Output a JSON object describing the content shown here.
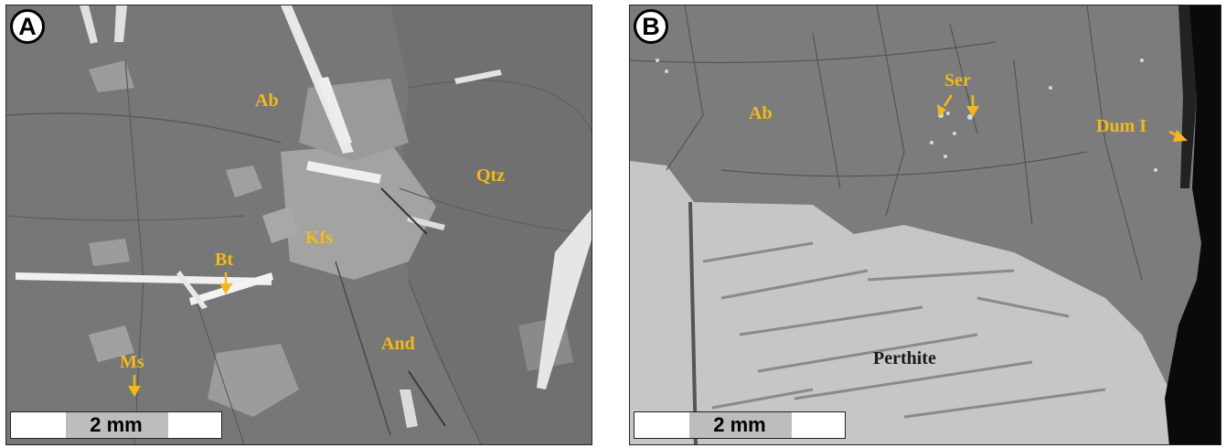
{
  "panel_a": {
    "letter": "A",
    "labels": {
      "ab": "Ab",
      "qtz": "Qtz",
      "kfs": "Kfs",
      "bt": "Bt",
      "and": "And",
      "ms": "Ms"
    },
    "scale": "2 mm"
  },
  "panel_b": {
    "letter": "B",
    "labels": {
      "ab": "Ab",
      "ser": "Ser",
      "dum": "Dum I",
      "perthite": "Perthite"
    },
    "scale": "2 mm"
  },
  "colors": {
    "label_yellow": "#f5b81c",
    "matrix_gray": "#7a7a7a",
    "light_phase": "#c8c8c8"
  }
}
